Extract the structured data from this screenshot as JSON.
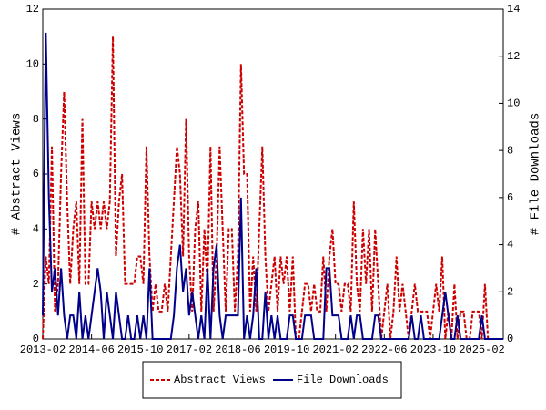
{
  "chart_data": {
    "type": "line",
    "ylabel": "# Abstract Views",
    "y2label": "# File Downloads",
    "categories": [
      "2013-02",
      null,
      null,
      null,
      null,
      null,
      null,
      null,
      null,
      null,
      null,
      null,
      null,
      null,
      null,
      null,
      "2014-06",
      null,
      null,
      null,
      null,
      null,
      null,
      null,
      null,
      null,
      null,
      null,
      null,
      null,
      null,
      null,
      "2015-10",
      null,
      null,
      null,
      null,
      null,
      null,
      null,
      null,
      null,
      null,
      null,
      null,
      null,
      null,
      null,
      "2017-02",
      null,
      null,
      null,
      null,
      null,
      null,
      null,
      null,
      null,
      null,
      null,
      null,
      null,
      null,
      null,
      "2018-06",
      null,
      null,
      null,
      null,
      null,
      null,
      null,
      null,
      null,
      null,
      null,
      null,
      null,
      null,
      null,
      "2019-10",
      null,
      null,
      null,
      null,
      null,
      null,
      null,
      null,
      null,
      null,
      null,
      null,
      null,
      null,
      null,
      "2021-02",
      null,
      null,
      null,
      null,
      null,
      null,
      null,
      null,
      null,
      null,
      null,
      null,
      null,
      null,
      null,
      "2022-06",
      null,
      null,
      null,
      null,
      null,
      null,
      null,
      null,
      null,
      null,
      null,
      null,
      null,
      null,
      null,
      "2023-10",
      null,
      null,
      null,
      null,
      null,
      null,
      null,
      null,
      null,
      null,
      null,
      null,
      null,
      null,
      null,
      "2025-02",
      null,
      null,
      null,
      null,
      null,
      null,
      null
    ],
    "series": [
      {
        "name": "Abstract Views",
        "color": "#cc0000",
        "dashed": true,
        "axis": "y",
        "values": [
          0,
          3,
          2,
          7,
          1,
          2,
          6,
          9,
          5,
          2,
          4,
          5,
          2,
          8,
          2,
          2,
          5,
          4,
          5,
          4,
          5,
          4,
          5,
          11,
          3,
          5,
          6,
          2,
          2,
          2,
          2,
          3,
          3,
          2,
          7,
          3,
          1,
          2,
          1,
          1,
          2,
          1,
          3,
          5,
          7,
          6,
          3,
          8,
          3,
          1,
          4,
          5,
          1,
          4,
          2,
          7,
          1,
          3,
          7,
          4,
          1,
          4,
          4,
          1,
          3,
          10,
          6,
          6,
          1,
          3,
          1,
          4,
          7,
          3,
          1,
          2,
          3,
          1,
          3,
          2,
          3,
          1,
          3,
          0,
          0,
          1,
          2,
          2,
          1,
          2,
          1,
          1,
          3,
          1,
          3,
          4,
          2,
          2,
          1,
          2,
          2,
          1,
          5,
          2,
          1,
          4,
          2,
          4,
          1,
          4,
          2,
          0,
          1,
          2,
          0,
          1,
          3,
          1,
          2,
          1,
          0,
          1,
          2,
          1,
          1,
          1,
          1,
          0,
          1,
          2,
          1,
          3,
          0,
          1,
          0,
          2,
          0,
          1,
          1,
          0,
          0,
          1,
          1,
          1,
          0,
          2,
          0,
          0,
          0,
          0,
          0,
          0
        ]
      },
      {
        "name": "File Downloads",
        "color": "#00008b",
        "dashed": false,
        "axis": "y2",
        "values": [
          1,
          13,
          6,
          2,
          3,
          1,
          3,
          1,
          0,
          1,
          1,
          0,
          2,
          0,
          1,
          0,
          1,
          2,
          3,
          2,
          0,
          2,
          1,
          0,
          2,
          1,
          0,
          0,
          1,
          0,
          0,
          1,
          0,
          1,
          0,
          3,
          0,
          0,
          0,
          0,
          0,
          0,
          0,
          1,
          3,
          4,
          2,
          3,
          1,
          2,
          1,
          0,
          1,
          0,
          3,
          0,
          3,
          4,
          1,
          0,
          1,
          1,
          1,
          1,
          1,
          6,
          0,
          1,
          0,
          1,
          3,
          0,
          0,
          2,
          0,
          1,
          0,
          1,
          0,
          0,
          0,
          1,
          1,
          0,
          0,
          0,
          1,
          1,
          1,
          0,
          0,
          0,
          0,
          3,
          3,
          1,
          1,
          1,
          0,
          0,
          0,
          1,
          0,
          1,
          1,
          0,
          0,
          0,
          0,
          1,
          1,
          0,
          0,
          0,
          0,
          0,
          0,
          0,
          0,
          0,
          0,
          1,
          0,
          0,
          1,
          0,
          0,
          0,
          0,
          0,
          0,
          1,
          2,
          1,
          0,
          0,
          1,
          0,
          0,
          0,
          0,
          0,
          0,
          0,
          1,
          0,
          0,
          0,
          0,
          0,
          0,
          0
        ]
      }
    ],
    "ylim": [
      0,
      12
    ],
    "yticks": [
      0,
      2,
      4,
      6,
      8,
      10,
      12
    ],
    "y2lim": [
      0,
      14
    ],
    "y2ticks": [
      0,
      2,
      4,
      6,
      8,
      10,
      12,
      14
    ]
  }
}
